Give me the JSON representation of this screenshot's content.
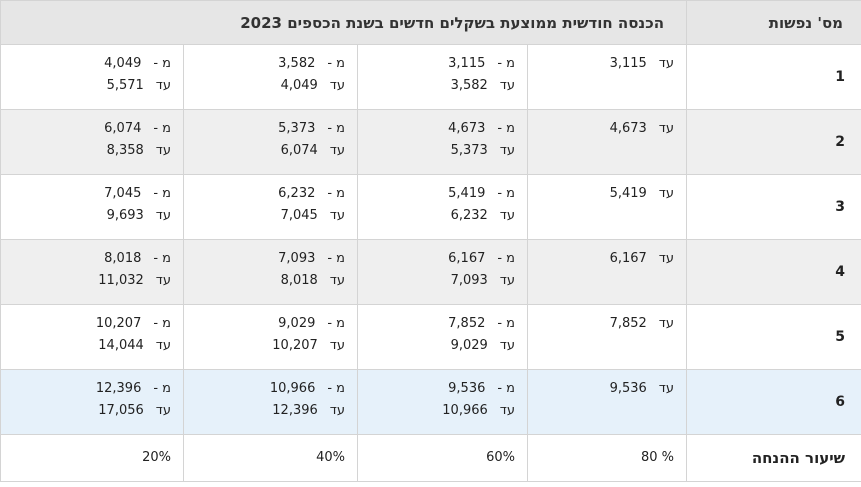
{
  "header": {
    "persons_label": "מס' נפשות",
    "income_label": "הכנסה חודשית ממוצעת בשקלים חדשים בשנת הכספים 2023"
  },
  "rows": [
    {
      "persons": "1",
      "col1": {
        "prefix": "עד",
        "value": "3,115"
      },
      "col2": {
        "l1_prefix": "מ -",
        "l1_value": "3,115",
        "l2_prefix": "עד",
        "l2_value": "3,582"
      },
      "col3": {
        "l1_prefix": "מ -",
        "l1_value": "3,582",
        "l2_prefix": "עד",
        "l2_value": "4,049"
      },
      "col4": {
        "l1_prefix": "מ -",
        "l1_value": "4,049",
        "l2_prefix": "עד",
        "l2_value": "5,571"
      }
    },
    {
      "persons": "2",
      "col1": {
        "prefix": "עד",
        "value": "4,673"
      },
      "col2": {
        "l1_prefix": "מ -",
        "l1_value": "4,673",
        "l2_prefix": "עד",
        "l2_value": "5,373"
      },
      "col3": {
        "l1_prefix": "מ -",
        "l1_value": "5,373",
        "l2_prefix": "עד",
        "l2_value": "6,074"
      },
      "col4": {
        "l1_prefix": "מ -",
        "l1_value": "6,074",
        "l2_prefix": "עד",
        "l2_value": "8,358"
      }
    },
    {
      "persons": "3",
      "col1": {
        "prefix": "עד",
        "value": "5,419"
      },
      "col2": {
        "l1_prefix": "מ -",
        "l1_value": "5,419",
        "l2_prefix": "עד",
        "l2_value": "6,232"
      },
      "col3": {
        "l1_prefix": "מ -",
        "l1_value": "6,232",
        "l2_prefix": "עד",
        "l2_value": "7,045"
      },
      "col4": {
        "l1_prefix": "מ -",
        "l1_value": "7,045",
        "l2_prefix": "עד",
        "l2_value": "9,693"
      }
    },
    {
      "persons": "4",
      "col1": {
        "prefix": "עד",
        "value": "6,167"
      },
      "col2": {
        "l1_prefix": "מ -",
        "l1_value": "6,167",
        "l2_prefix": "עד",
        "l2_value": "7,093"
      },
      "col3": {
        "l1_prefix": "מ -",
        "l1_value": "7,093",
        "l2_prefix": "עד",
        "l2_value": "8,018"
      },
      "col4": {
        "l1_prefix": "מ -",
        "l1_value": "8,018",
        "l2_prefix": "עד",
        "l2_value": "11,032"
      }
    },
    {
      "persons": "5",
      "col1": {
        "prefix": "עד",
        "value": "7,852"
      },
      "col2": {
        "l1_prefix": "מ -",
        "l1_value": "7,852",
        "l2_prefix": "עד",
        "l2_value": "9,029"
      },
      "col3": {
        "l1_prefix": "מ -",
        "l1_value": "9,029",
        "l2_prefix": "עד",
        "l2_value": "10,207"
      },
      "col4": {
        "l1_prefix": "מ -",
        "l1_value": "10,207",
        "l2_prefix": "עד",
        "l2_value": "14,044"
      }
    },
    {
      "persons": "6",
      "col1": {
        "prefix": "עד",
        "value": "9,536"
      },
      "col2": {
        "l1_prefix": "מ -",
        "l1_value": "9,536",
        "l2_prefix": "עד",
        "l2_value": "10,966"
      },
      "col3": {
        "l1_prefix": "מ -",
        "l1_value": "10,966",
        "l2_prefix": "עד",
        "l2_value": "12,396"
      },
      "col4": {
        "l1_prefix": "מ -",
        "l1_value": "12,396",
        "l2_prefix": "עד",
        "l2_value": "17,056"
      }
    }
  ],
  "discount": {
    "label": "שיעור ההנחה",
    "values": [
      "80 %",
      "60%",
      "40%",
      "20%"
    ]
  },
  "colors": {
    "header_bg": "#e6e6e6",
    "alt_row_bg": "#efefef",
    "highlight_row_bg": "#e6f1fa",
    "border": "#d4d4d4"
  }
}
